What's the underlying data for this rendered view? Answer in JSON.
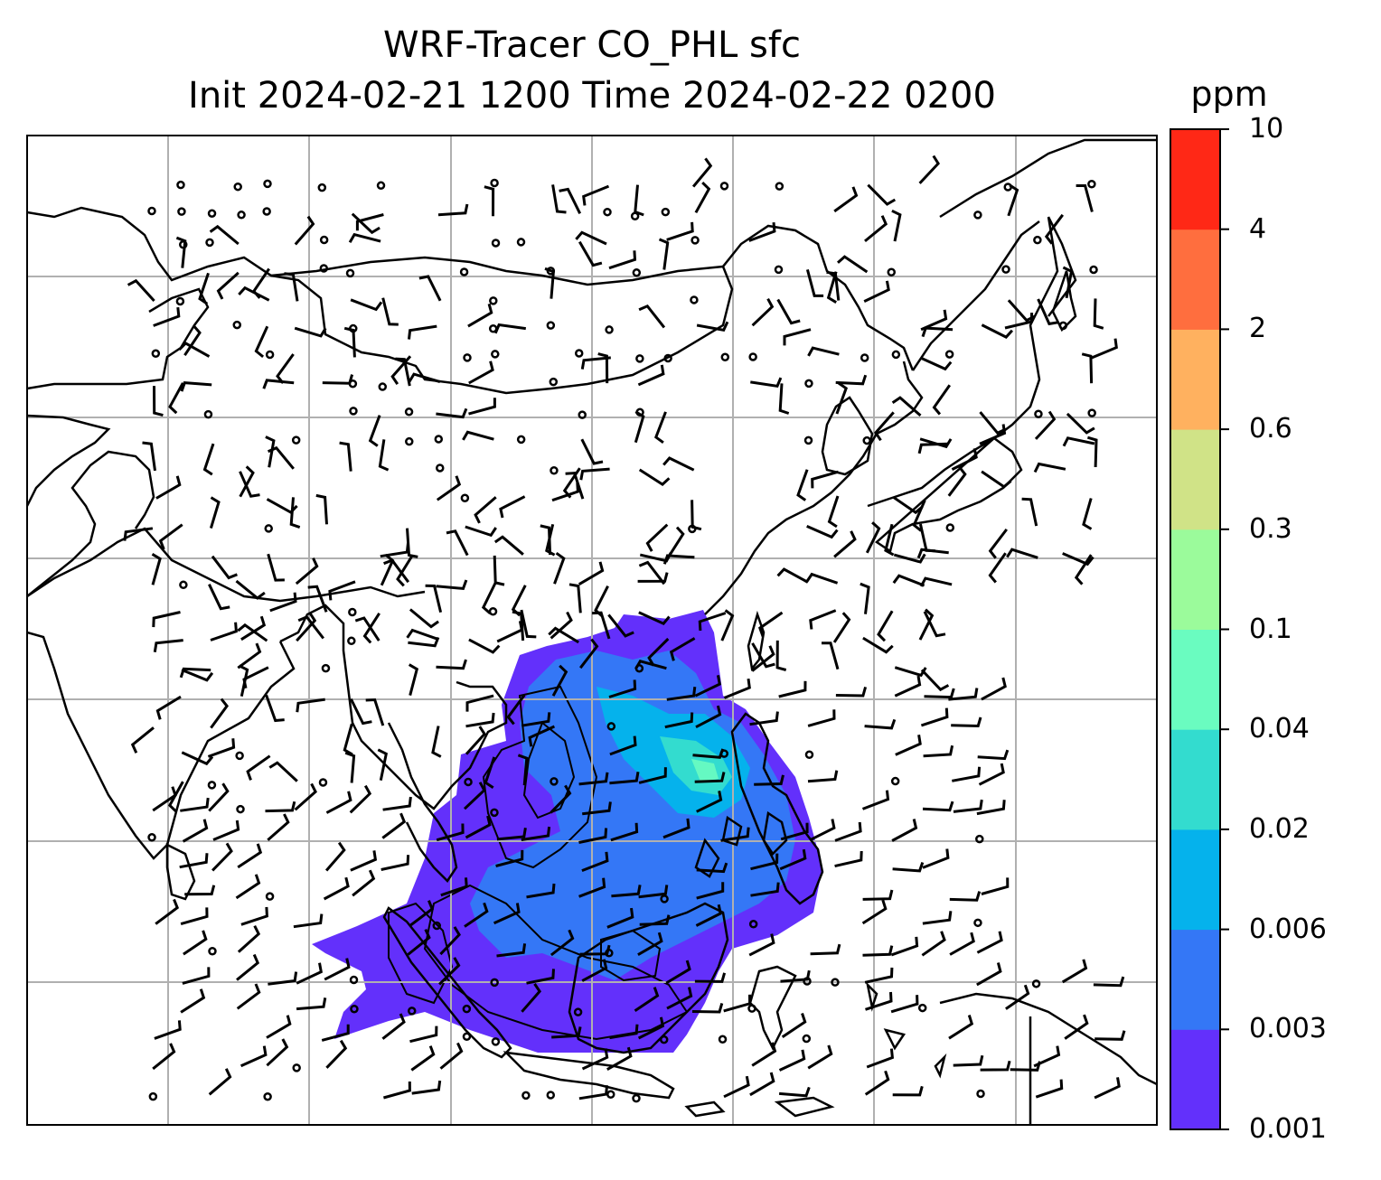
{
  "title_line1": "WRF-Tracer CO_PHL sfc",
  "title_line2": "Init 2024-02-21 1200 Time 2024-02-22 0200",
  "colorbar": {
    "unit": "ppm",
    "levels": [
      "0.001",
      "0.003",
      "0.006",
      "0.02",
      "0.04",
      "0.1",
      "0.3",
      "0.6",
      "2",
      "4",
      "10"
    ],
    "colors": [
      "#6330fb",
      "#3477f6",
      "#05b2ec",
      "#33dccf",
      "#6afcc0",
      "#9bfb9b",
      "#d0e387",
      "#ffb15f",
      "#ff6e3e",
      "#ff2816"
    ]
  },
  "colors": {
    "gridline": "#b0b0b0",
    "coastline": "#000000",
    "frame": "#000000"
  }
}
